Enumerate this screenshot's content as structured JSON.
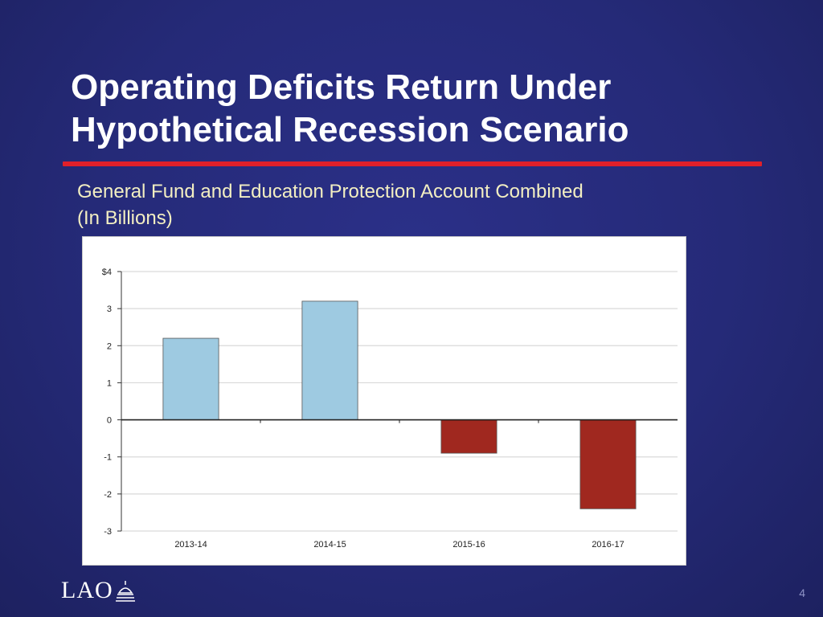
{
  "slide": {
    "title_lines": [
      "Operating Deficits Return Under",
      "Hypothetical Recession Scenario"
    ],
    "subtitle_lines": [
      "General Fund and Education Protection Account Combined",
      "(In Billions)"
    ],
    "page_number": "4",
    "logo_text": "LAO",
    "colors": {
      "background": "#262b7c",
      "title": "#ffffff",
      "rule": "#e0202a",
      "subtitle": "#f3efc2"
    }
  },
  "chart_data": {
    "type": "bar",
    "title": "",
    "xlabel": "",
    "ylabel": "",
    "categories": [
      "2013-14",
      "2014-15",
      "2015-16",
      "2016-17"
    ],
    "values": [
      2.2,
      3.2,
      -0.9,
      -2.4
    ],
    "ylim": [
      -3,
      4
    ],
    "yticks": [
      4,
      3,
      2,
      1,
      0,
      -1,
      -2,
      -3
    ],
    "ytick_labels": [
      "$4",
      "3",
      "2",
      "1",
      "0",
      "-1",
      "-2",
      "-3"
    ],
    "grid": true,
    "legend": "none",
    "colors": {
      "positive": "#9ecae1",
      "negative": "#a0281f",
      "outline": "#555555",
      "grid": "#d9d9d9"
    }
  }
}
